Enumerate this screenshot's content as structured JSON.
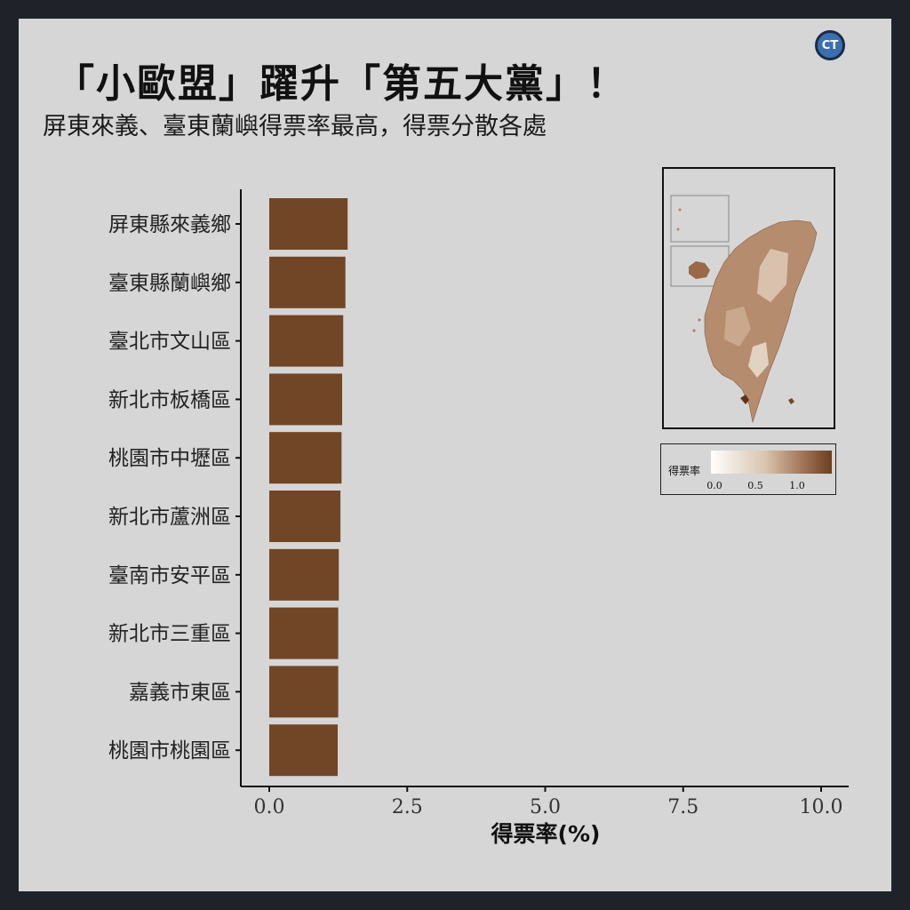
{
  "header": {
    "title": "「小歐盟」躍升「第五大黨」！",
    "subtitle": "屏東來義、臺東蘭嶼得票率最高，得票分散各處",
    "logo_text": "CT"
  },
  "chart_data": {
    "type": "bar",
    "orientation": "horizontal",
    "categories": [
      "屏東縣來義鄉",
      "臺東縣蘭嶼鄉",
      "臺北市文山區",
      "新北市板橋區",
      "桃園市中壢區",
      "新北市蘆洲區",
      "臺南市安平區",
      "新北市三重區",
      "嘉義市東區",
      "桃園市桃園區"
    ],
    "values": [
      1.42,
      1.38,
      1.34,
      1.32,
      1.31,
      1.29,
      1.26,
      1.25,
      1.25,
      1.24
    ],
    "xlabel": "得票率(%)",
    "ylabel": "",
    "xlim": [
      0,
      10.5
    ],
    "xticks": [
      "0.0",
      "2.5",
      "5.0",
      "7.5",
      "10.0"
    ],
    "bar_color": "#714626",
    "grid": false
  },
  "legend": {
    "title": "得票率",
    "ticks": [
      "0.0",
      "0.5",
      "1.0"
    ],
    "color_low": "#ffffff",
    "color_high": "#6b3e1e"
  },
  "map": {
    "description_color": "#a67b5b"
  }
}
